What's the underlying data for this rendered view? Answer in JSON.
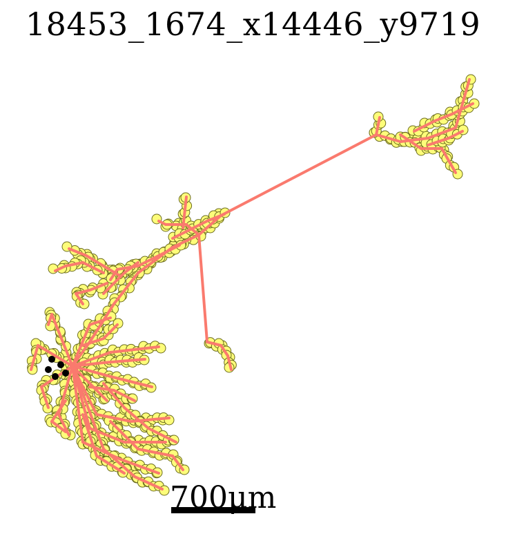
{
  "title": "18453_1674_x14446_y9719",
  "scale_bar": {
    "label": "700μm"
  },
  "colors": {
    "edge": "#fa7a6e",
    "node_fill": "#fdfd7a",
    "node_stroke": "#6b6b1e",
    "scale_bar": "#000000"
  }
}
